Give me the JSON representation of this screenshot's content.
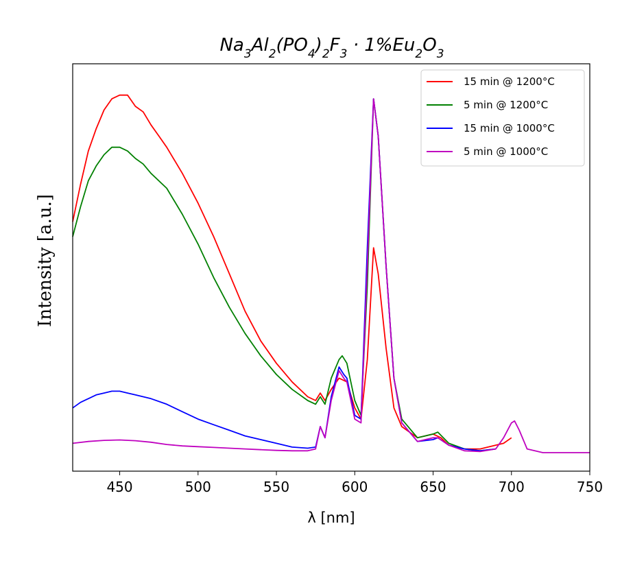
{
  "chart_data": {
    "type": "line",
    "title": "Na3Al2(PO4)2F3 · 1%Eu2O3",
    "title_parts": {
      "p1": "Na",
      "s1": "3",
      "p2": "Al",
      "s2": "2",
      "p3": "(PO",
      "s3": "4",
      "p4": ")",
      "s4": "2",
      "p5": "F",
      "s5": "3",
      "p6": " · 1%Eu",
      "s6": "2",
      "p7": "O",
      "s7": "3"
    },
    "xlabel": "λ [nm]",
    "ylabel": "Intensity [a.u.]",
    "xlim": [
      420,
      750
    ],
    "ylim": [
      0,
      1
    ],
    "y_ticks_shown": false,
    "x_ticks": [
      {
        "value": 450,
        "label": "450"
      },
      {
        "value": 500,
        "label": "500"
      },
      {
        "value": 550,
        "label": "550"
      },
      {
        "value": 600,
        "label": "600"
      },
      {
        "value": 650,
        "label": "650"
      },
      {
        "value": 700,
        "label": "700"
      },
      {
        "value": 750,
        "label": "750"
      }
    ],
    "grid": false,
    "legend_position": "top-right",
    "series": [
      {
        "name": "15 min @ 1200°C",
        "color": "#ff0000",
        "points": [
          [
            420,
            0.62
          ],
          [
            425,
            0.72
          ],
          [
            430,
            0.81
          ],
          [
            435,
            0.87
          ],
          [
            440,
            0.92
          ],
          [
            445,
            0.95
          ],
          [
            450,
            0.96
          ],
          [
            455,
            0.96
          ],
          [
            460,
            0.93
          ],
          [
            465,
            0.915
          ],
          [
            470,
            0.88
          ],
          [
            475,
            0.85
          ],
          [
            480,
            0.82
          ],
          [
            490,
            0.75
          ],
          [
            500,
            0.67
          ],
          [
            510,
            0.58
          ],
          [
            520,
            0.48
          ],
          [
            530,
            0.38
          ],
          [
            540,
            0.3
          ],
          [
            550,
            0.24
          ],
          [
            560,
            0.19
          ],
          [
            570,
            0.15
          ],
          [
            575,
            0.14
          ],
          [
            578,
            0.16
          ],
          [
            581,
            0.14
          ],
          [
            585,
            0.17
          ],
          [
            590,
            0.2
          ],
          [
            595,
            0.19
          ],
          [
            600,
            0.12
          ],
          [
            604,
            0.09
          ],
          [
            608,
            0.25
          ],
          [
            612,
            0.55
          ],
          [
            615,
            0.48
          ],
          [
            620,
            0.28
          ],
          [
            625,
            0.12
          ],
          [
            630,
            0.07
          ],
          [
            640,
            0.04
          ],
          [
            650,
            0.05
          ],
          [
            655,
            0.04
          ],
          [
            660,
            0.02
          ],
          [
            670,
            0.01
          ],
          [
            680,
            0.01
          ],
          [
            690,
            0.02
          ],
          [
            695,
            0.025
          ],
          [
            700,
            0.04
          ]
        ]
      },
      {
        "name": "5 min @ 1200°C",
        "color": "#008000",
        "points": [
          [
            420,
            0.58
          ],
          [
            425,
            0.66
          ],
          [
            430,
            0.73
          ],
          [
            435,
            0.77
          ],
          [
            440,
            0.8
          ],
          [
            445,
            0.82
          ],
          [
            450,
            0.82
          ],
          [
            455,
            0.81
          ],
          [
            460,
            0.79
          ],
          [
            465,
            0.775
          ],
          [
            470,
            0.75
          ],
          [
            480,
            0.71
          ],
          [
            490,
            0.64
          ],
          [
            500,
            0.56
          ],
          [
            510,
            0.47
          ],
          [
            520,
            0.39
          ],
          [
            530,
            0.32
          ],
          [
            540,
            0.26
          ],
          [
            550,
            0.21
          ],
          [
            560,
            0.17
          ],
          [
            570,
            0.14
          ],
          [
            575,
            0.13
          ],
          [
            578,
            0.15
          ],
          [
            581,
            0.13
          ],
          [
            585,
            0.2
          ],
          [
            590,
            0.25
          ],
          [
            592,
            0.26
          ],
          [
            595,
            0.24
          ],
          [
            600,
            0.14
          ],
          [
            604,
            0.1
          ],
          [
            608,
            0.45
          ],
          [
            612,
            0.95
          ],
          [
            615,
            0.85
          ],
          [
            620,
            0.5
          ],
          [
            625,
            0.2
          ],
          [
            630,
            0.09
          ],
          [
            640,
            0.04
          ],
          [
            650,
            0.05
          ],
          [
            653,
            0.055
          ],
          [
            660,
            0.025
          ],
          [
            670,
            0.01
          ],
          [
            680,
            0.005
          ],
          [
            690,
            0.01
          ]
        ]
      },
      {
        "name": "15 min @ 1000°C",
        "color": "#0000ff",
        "points": [
          [
            420,
            0.12
          ],
          [
            425,
            0.135
          ],
          [
            430,
            0.145
          ],
          [
            435,
            0.155
          ],
          [
            440,
            0.16
          ],
          [
            445,
            0.165
          ],
          [
            450,
            0.165
          ],
          [
            455,
            0.16
          ],
          [
            460,
            0.155
          ],
          [
            470,
            0.145
          ],
          [
            480,
            0.13
          ],
          [
            490,
            0.11
          ],
          [
            500,
            0.09
          ],
          [
            510,
            0.075
          ],
          [
            520,
            0.06
          ],
          [
            530,
            0.045
          ],
          [
            540,
            0.035
          ],
          [
            550,
            0.025
          ],
          [
            560,
            0.015
          ],
          [
            570,
            0.012
          ],
          [
            575,
            0.015
          ],
          [
            578,
            0.07
          ],
          [
            581,
            0.04
          ],
          [
            585,
            0.15
          ],
          [
            590,
            0.23
          ],
          [
            593,
            0.21
          ],
          [
            595,
            0.2
          ],
          [
            600,
            0.1
          ],
          [
            604,
            0.09
          ],
          [
            608,
            0.55
          ],
          [
            612,
            0.95
          ],
          [
            615,
            0.85
          ],
          [
            620,
            0.5
          ],
          [
            625,
            0.2
          ],
          [
            630,
            0.08
          ],
          [
            640,
            0.03
          ],
          [
            650,
            0.035
          ],
          [
            653,
            0.04
          ],
          [
            660,
            0.02
          ],
          [
            670,
            0.01
          ],
          [
            680,
            0.005
          ],
          [
            690,
            0.01
          ]
        ]
      },
      {
        "name": "5 min @ 1000°C",
        "color": "#bf00bf",
        "points": [
          [
            420,
            0.025
          ],
          [
            430,
            0.03
          ],
          [
            440,
            0.033
          ],
          [
            450,
            0.034
          ],
          [
            460,
            0.032
          ],
          [
            470,
            0.028
          ],
          [
            480,
            0.022
          ],
          [
            490,
            0.018
          ],
          [
            500,
            0.016
          ],
          [
            510,
            0.014
          ],
          [
            520,
            0.012
          ],
          [
            530,
            0.01
          ],
          [
            540,
            0.008
          ],
          [
            550,
            0.006
          ],
          [
            560,
            0.005
          ],
          [
            570,
            0.005
          ],
          [
            575,
            0.01
          ],
          [
            578,
            0.07
          ],
          [
            581,
            0.04
          ],
          [
            585,
            0.14
          ],
          [
            590,
            0.22
          ],
          [
            593,
            0.2
          ],
          [
            595,
            0.19
          ],
          [
            600,
            0.09
          ],
          [
            604,
            0.08
          ],
          [
            608,
            0.5
          ],
          [
            612,
            0.95
          ],
          [
            615,
            0.85
          ],
          [
            620,
            0.5
          ],
          [
            625,
            0.2
          ],
          [
            630,
            0.08
          ],
          [
            640,
            0.03
          ],
          [
            650,
            0.04
          ],
          [
            653,
            0.04
          ],
          [
            660,
            0.02
          ],
          [
            670,
            0.005
          ],
          [
            680,
            0.003
          ],
          [
            690,
            0.01
          ],
          [
            695,
            0.04
          ],
          [
            700,
            0.08
          ],
          [
            702,
            0.085
          ],
          [
            705,
            0.06
          ],
          [
            710,
            0.01
          ],
          [
            720,
            0.0
          ],
          [
            730,
            0.0
          ],
          [
            740,
            0.0
          ],
          [
            750,
            0.0
          ]
        ]
      }
    ]
  }
}
